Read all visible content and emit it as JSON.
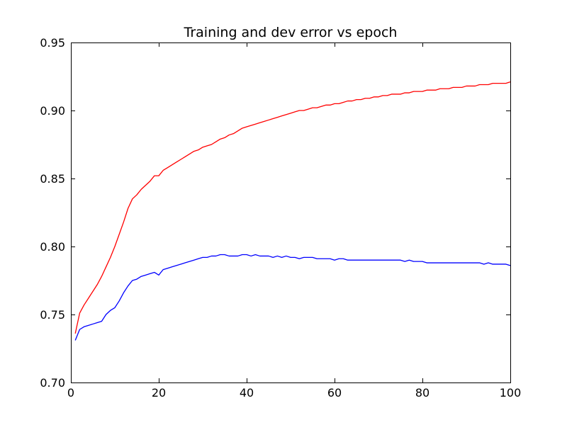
{
  "chart_data": {
    "type": "line",
    "title": "Training and dev error vs epoch",
    "xlabel": "",
    "ylabel": "",
    "xlim": [
      0,
      100
    ],
    "ylim": [
      0.7,
      0.95
    ],
    "grid": false,
    "x_ticks": [
      "0",
      "20",
      "40",
      "60",
      "80",
      "100"
    ],
    "y_ticks": [
      "0.70",
      "0.75",
      "0.80",
      "0.85",
      "0.90",
      "0.95"
    ],
    "x": [
      1,
      2,
      3,
      4,
      5,
      6,
      7,
      8,
      9,
      10,
      11,
      12,
      13,
      14,
      15,
      16,
      17,
      18,
      19,
      20,
      21,
      22,
      23,
      24,
      25,
      26,
      27,
      28,
      29,
      30,
      31,
      32,
      33,
      34,
      35,
      36,
      37,
      38,
      39,
      40,
      41,
      42,
      43,
      44,
      45,
      46,
      47,
      48,
      49,
      50,
      51,
      52,
      53,
      54,
      55,
      56,
      57,
      58,
      59,
      60,
      61,
      62,
      63,
      64,
      65,
      66,
      67,
      68,
      69,
      70,
      71,
      72,
      73,
      74,
      75,
      76,
      77,
      78,
      79,
      80,
      81,
      82,
      83,
      84,
      85,
      86,
      87,
      88,
      89,
      90,
      91,
      92,
      93,
      94,
      95,
      96,
      97,
      98,
      99,
      100
    ],
    "series": [
      {
        "color": "#ff0000",
        "values": [
          0.736,
          0.751,
          0.757,
          0.762,
          0.767,
          0.772,
          0.778,
          0.785,
          0.792,
          0.8,
          0.809,
          0.818,
          0.828,
          0.835,
          0.838,
          0.842,
          0.845,
          0.848,
          0.852,
          0.852,
          0.856,
          0.858,
          0.86,
          0.862,
          0.864,
          0.866,
          0.868,
          0.87,
          0.871,
          0.873,
          0.874,
          0.875,
          0.877,
          0.879,
          0.88,
          0.882,
          0.883,
          0.885,
          0.887,
          0.888,
          0.889,
          0.89,
          0.891,
          0.892,
          0.893,
          0.894,
          0.895,
          0.896,
          0.897,
          0.898,
          0.899,
          0.9,
          0.9,
          0.901,
          0.902,
          0.902,
          0.903,
          0.904,
          0.904,
          0.905,
          0.905,
          0.906,
          0.907,
          0.907,
          0.908,
          0.908,
          0.909,
          0.909,
          0.91,
          0.91,
          0.911,
          0.911,
          0.912,
          0.912,
          0.912,
          0.913,
          0.913,
          0.914,
          0.914,
          0.914,
          0.915,
          0.915,
          0.915,
          0.916,
          0.916,
          0.916,
          0.917,
          0.917,
          0.917,
          0.918,
          0.918,
          0.918,
          0.919,
          0.919,
          0.919,
          0.92,
          0.92,
          0.92,
          0.92,
          0.921
        ]
      },
      {
        "color": "#0000ff",
        "values": [
          0.731,
          0.739,
          0.741,
          0.742,
          0.743,
          0.744,
          0.745,
          0.75,
          0.753,
          0.755,
          0.76,
          0.766,
          0.771,
          0.775,
          0.776,
          0.778,
          0.779,
          0.78,
          0.781,
          0.779,
          0.783,
          0.784,
          0.785,
          0.786,
          0.787,
          0.788,
          0.789,
          0.79,
          0.791,
          0.792,
          0.792,
          0.793,
          0.793,
          0.794,
          0.794,
          0.793,
          0.793,
          0.793,
          0.794,
          0.794,
          0.793,
          0.794,
          0.793,
          0.793,
          0.793,
          0.792,
          0.793,
          0.792,
          0.793,
          0.792,
          0.792,
          0.791,
          0.792,
          0.792,
          0.792,
          0.791,
          0.791,
          0.791,
          0.791,
          0.79,
          0.791,
          0.791,
          0.79,
          0.79,
          0.79,
          0.79,
          0.79,
          0.79,
          0.79,
          0.79,
          0.79,
          0.79,
          0.79,
          0.79,
          0.79,
          0.789,
          0.79,
          0.789,
          0.789,
          0.789,
          0.788,
          0.788,
          0.788,
          0.788,
          0.788,
          0.788,
          0.788,
          0.788,
          0.788,
          0.788,
          0.788,
          0.788,
          0.788,
          0.787,
          0.788,
          0.787,
          0.787,
          0.787,
          0.787,
          0.786
        ]
      }
    ]
  }
}
